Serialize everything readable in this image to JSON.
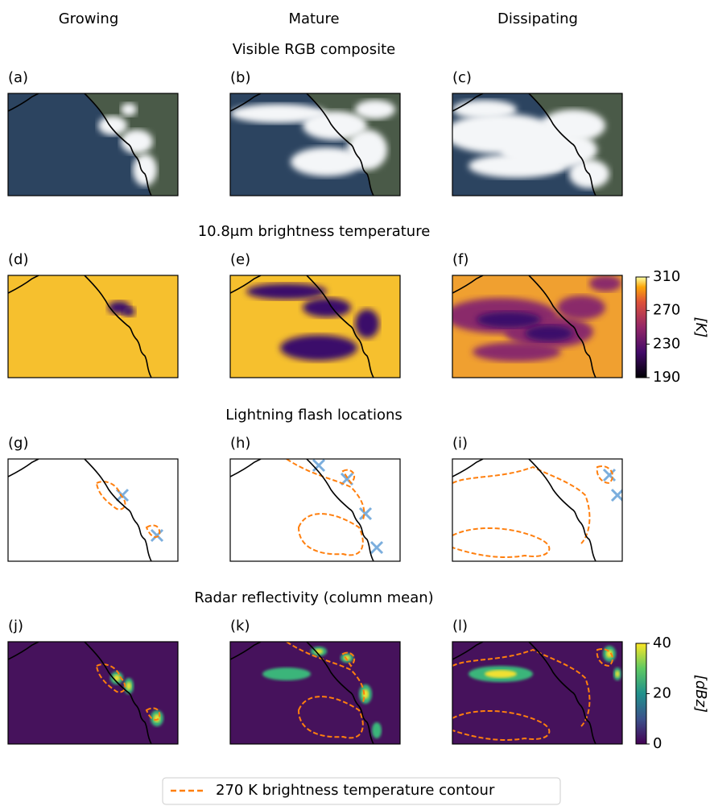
{
  "columns": [
    "Growing",
    "Mature",
    "Dissipating"
  ],
  "rows": [
    {
      "title": "Visible RGB composite",
      "panels": [
        "(a)",
        "(b)",
        "(c)"
      ]
    },
    {
      "title": "10.8μm brightness temperature",
      "panels": [
        "(d)",
        "(e)",
        "(f)"
      ]
    },
    {
      "title": "Lightning flash locations",
      "panels": [
        "(g)",
        "(h)",
        "(i)"
      ]
    },
    {
      "title": "Radar reflectivity (column mean)",
      "panels": [
        "(j)",
        "(k)",
        "(l)"
      ]
    }
  ],
  "colorbars": [
    {
      "ylim": [
        190,
        310
      ],
      "yticks": [
        190,
        230,
        270,
        310
      ],
      "label": "[K]"
    },
    {
      "ylim": [
        0,
        40
      ],
      "yticks": [
        0,
        20,
        40
      ],
      "label": "[dBz]"
    }
  ],
  "legend": "270 K brightness temperature contour"
}
